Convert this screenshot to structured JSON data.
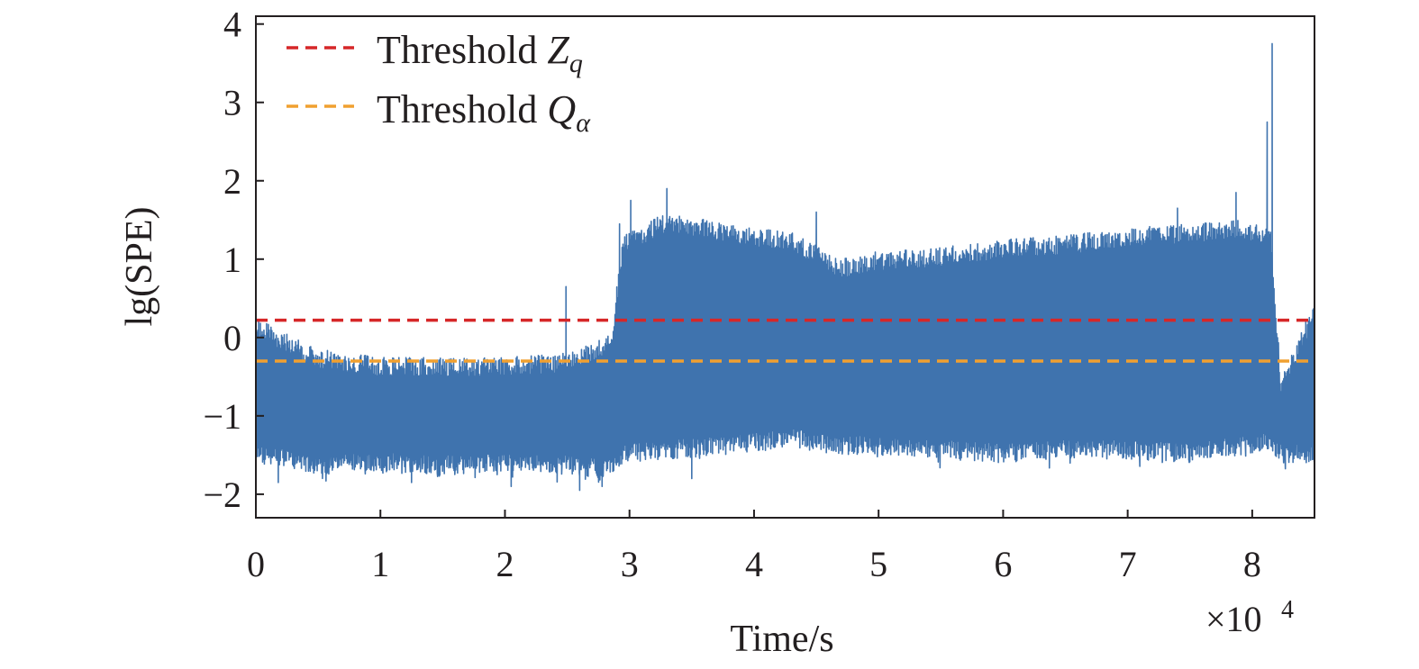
{
  "chart_data": {
    "type": "line",
    "xlabel": "Time/s",
    "ylabel": "lg(SPE)",
    "x_multiplier_label": "×10",
    "x_multiplier_exponent": "4",
    "x_scale": 10000,
    "xlim": [
      0,
      85000
    ],
    "ylim": [
      -2.3,
      4.1
    ],
    "xticks": [
      0,
      10000,
      20000,
      30000,
      40000,
      50000,
      60000,
      70000,
      80000
    ],
    "xtick_labels": [
      "0",
      "1",
      "2",
      "3",
      "4",
      "5",
      "6",
      "7",
      "8"
    ],
    "yticks": [
      -2,
      -1,
      0,
      1,
      2,
      3,
      4
    ],
    "ytick_labels": [
      "−2",
      "−1",
      "0",
      "1",
      "2",
      "3",
      "4"
    ],
    "grid": false,
    "legend_position": "top-left",
    "thresholds": [
      {
        "name": "Threshold Z",
        "symbol": "Z",
        "subscript": "q",
        "label": "Threshold ",
        "value": 0.22,
        "color": "#d62728"
      },
      {
        "name": "Threshold Q",
        "symbol": "Q",
        "subscript": "α",
        "label": "Threshold ",
        "value": -0.3,
        "color": "#f0a030"
      }
    ],
    "series": [
      {
        "color": "#3f73ae",
        "envelope": [
          {
            "x": 0,
            "low": -1.6,
            "high": 0.25
          },
          {
            "x": 5000,
            "low": -1.75,
            "high": -0.15
          },
          {
            "x": 10000,
            "low": -1.7,
            "high": -0.25
          },
          {
            "x": 15000,
            "low": -1.75,
            "high": -0.25
          },
          {
            "x": 20000,
            "low": -1.7,
            "high": -0.25
          },
          {
            "x": 25000,
            "low": -1.75,
            "high": -0.2
          },
          {
            "x": 28500,
            "low": -1.8,
            "high": 0.05
          },
          {
            "x": 29500,
            "low": -1.6,
            "high": 1.3
          },
          {
            "x": 33000,
            "low": -1.55,
            "high": 1.6
          },
          {
            "x": 38000,
            "low": -1.5,
            "high": 1.45
          },
          {
            "x": 43000,
            "low": -1.4,
            "high": 1.35
          },
          {
            "x": 47000,
            "low": -1.5,
            "high": 1.0
          },
          {
            "x": 50000,
            "low": -1.5,
            "high": 1.1
          },
          {
            "x": 55000,
            "low": -1.55,
            "high": 1.15
          },
          {
            "x": 60000,
            "low": -1.6,
            "high": 1.25
          },
          {
            "x": 65000,
            "low": -1.55,
            "high": 1.3
          },
          {
            "x": 70000,
            "low": -1.55,
            "high": 1.4
          },
          {
            "x": 75000,
            "low": -1.6,
            "high": 1.45
          },
          {
            "x": 79000,
            "low": -1.5,
            "high": 1.5
          },
          {
            "x": 81500,
            "low": -1.45,
            "high": 1.4
          },
          {
            "x": 82300,
            "low": -1.6,
            "high": -0.5
          },
          {
            "x": 85000,
            "low": -1.6,
            "high": 0.45
          }
        ],
        "spikes": [
          {
            "x": 24900,
            "y": 0.65
          },
          {
            "x": 29200,
            "y": 1.45
          },
          {
            "x": 30100,
            "y": 1.75
          },
          {
            "x": 33000,
            "y": 1.9
          },
          {
            "x": 40000,
            "y": 1.35
          },
          {
            "x": 45000,
            "y": 1.6
          },
          {
            "x": 74000,
            "y": 1.65
          },
          {
            "x": 78700,
            "y": 1.85
          },
          {
            "x": 81200,
            "y": 2.75
          },
          {
            "x": 81600,
            "y": 3.75
          }
        ],
        "dips": [
          {
            "x": 1800,
            "y": -1.85
          },
          {
            "x": 12500,
            "y": -1.85
          },
          {
            "x": 20500,
            "y": -1.9
          },
          {
            "x": 26000,
            "y": -1.95
          },
          {
            "x": 27800,
            "y": -1.9
          },
          {
            "x": 35000,
            "y": -1.8
          }
        ]
      }
    ]
  }
}
